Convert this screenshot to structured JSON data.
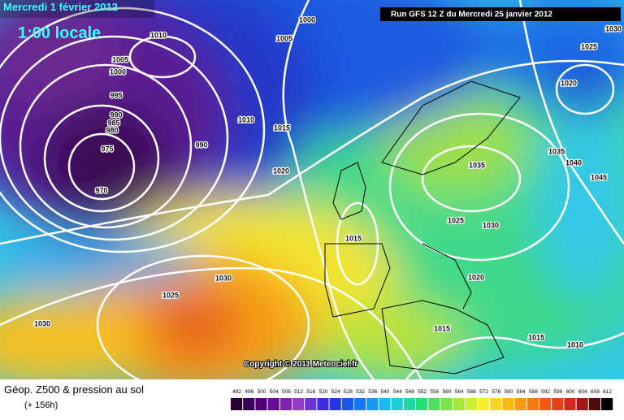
{
  "header": {
    "date": "Mercredi 1 février 2012",
    "time": "1:00 locale",
    "run": "Run GFS 12 Z du Mercredi 25 janvier 2012"
  },
  "copyright": "Copyright © 2011 Meteociel.fr",
  "legend": {
    "title": "Géop. Z500 & pression au sol",
    "lead": "(+ 156h)",
    "scale": [
      492,
      496,
      500,
      504,
      508,
      512,
      516,
      520,
      524,
      528,
      532,
      536,
      540,
      544,
      548,
      552,
      556,
      560,
      564,
      568,
      572,
      576,
      580,
      584,
      588,
      592,
      596,
      600,
      604,
      608,
      612
    ]
  },
  "isobar_labels": [
    1010,
    1005,
    1000,
    1005,
    1000,
    995,
    990,
    985,
    980,
    975,
    970,
    990,
    1010,
    1015,
    1020,
    1015,
    1025,
    1030,
    1035,
    1035,
    1040,
    1045,
    1020,
    1025,
    1030,
    1020,
    1015,
    1015,
    1010,
    1025,
    1030,
    1030
  ]
}
